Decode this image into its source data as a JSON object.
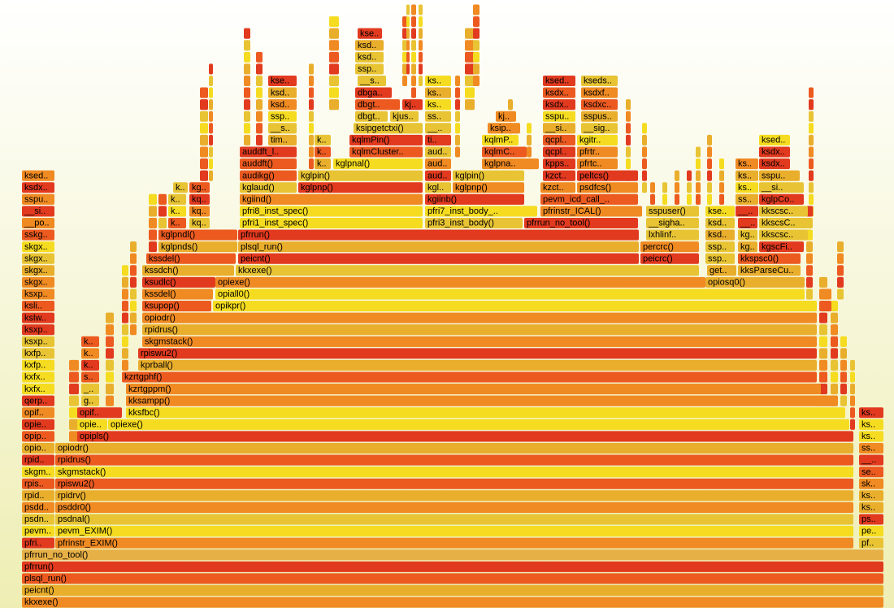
{
  "rows": [
    [
      "kkxexe()"
    ],
    [
      "peicnt()"
    ],
    [
      "plsql_run()"
    ],
    [
      "pfrrun()"
    ],
    [
      "pfrrun_no_tool()"
    ],
    [
      "pfri..",
      "pfrinstr_EXIM()",
      "pf.."
    ],
    [
      "pevm..",
      "pevm_EXIM()",
      "pe.."
    ],
    [
      "psdn..",
      "psdnal()",
      "ps.."
    ],
    [
      "psdd..",
      "psddr0()",
      "ks.."
    ],
    [
      "rpid..",
      "rpidrv()",
      "ks.."
    ],
    [
      "rpis..",
      "rpiswu2()",
      "sk.."
    ],
    [
      "skgm..",
      "skgmstack()",
      "se.."
    ],
    [
      "rpid..",
      "rpidrus()",
      "__.."
    ],
    [
      "opio..",
      "opiodr()",
      "ss.."
    ],
    [
      "opip..",
      "opipls()",
      "ks.."
    ],
    [
      "opie..",
      "opie..",
      "opiexe()",
      "ks.."
    ],
    [
      "opif..",
      "opif..",
      "kksfbc()",
      "ks.."
    ],
    [
      "qerp..",
      "g..",
      "kksampp()"
    ],
    [
      "kxfx..",
      "_..",
      "kzrtgppm()"
    ],
    [
      "kxfx..",
      "s..",
      "kzrtgphf()"
    ],
    [
      "kxfp..",
      "k..",
      "kprball()"
    ],
    [
      "kxfp..",
      "k..",
      "rpiswu2()"
    ],
    [
      "ksxp..",
      "k..",
      "skgmstack()"
    ],
    [
      "ksxp..",
      "rpidrus()"
    ],
    [
      "kslw..",
      "opiodr()"
    ],
    [
      "ksli..",
      "ksupop()",
      "opikpr()"
    ],
    [
      "ksxp..",
      "kssdel()",
      "opiall0()"
    ],
    [
      "skgx..",
      "ksudlc()",
      "opiexe()",
      "opiosq0()"
    ],
    [
      "skgx..",
      "kssdch()",
      "kkxexe()",
      "get..",
      "kksParseCu.."
    ],
    [
      "skgx..",
      "kssdel()",
      "peicnt()",
      "peicrc()",
      "ssp..",
      "kkspsc0()"
    ],
    [
      "skgx..",
      "kglpnds()",
      "plsql_run()",
      "percrc()",
      "ssp..",
      "kg..",
      "kgscFi.."
    ],
    [
      "sskg..",
      "kglpndl()",
      "pfrrun()",
      "lxhlinf..",
      "ksd..",
      "kg..",
      "kkscsc.."
    ],
    [
      "__po..",
      "k..",
      "kq..",
      "pfri1_inst_spec()",
      "pfri3_inst_body()",
      "pfrrun_no_tool()",
      "__sigha..",
      "ksd..",
      "__..",
      "kkscsC.."
    ],
    [
      "__si..",
      "k..",
      "kq..",
      "pfri8_inst_spec()",
      "pfri7_inst_body_..",
      "pfrinstr_ICAL()",
      "sspuser()",
      "kse..",
      "__..",
      "kkscsc.."
    ],
    [
      "sspu..",
      "k..",
      "kq..",
      "kgiind()",
      "kgiinb()",
      "pevm_icd_call_..",
      "ss..",
      "kglpCo.."
    ],
    [
      "ksdx..",
      "k..",
      "kg..",
      "kglaud()",
      "kglpnp()",
      "kgl..",
      "kglpnp()",
      "kzct..",
      "psdfcs()",
      "ks..",
      "__si.."
    ],
    [
      "ksed..",
      "audikg()",
      "kglpin()",
      "aud..",
      "kglpin()",
      "kzct..",
      "peltcs()",
      "ks..",
      "sspu.."
    ],
    [
      "auddft()",
      "k..",
      "kglpnal()",
      "aud..",
      "kglpna..",
      "kpps..",
      "pfrtc..",
      "ks..",
      "ksdx.."
    ],
    [
      "auddft_l..",
      "k..",
      "kqlmCluster..",
      "aud..",
      "kqlmC..",
      "qcpl..",
      "pfrtr..",
      "ksdx.."
    ],
    [
      "tim..",
      "k..",
      "kqlmPin()",
      "ti..",
      "kqlmP..",
      "qcpl..",
      "kgitr..",
      "ksed.."
    ],
    [
      "__s..",
      "ksipgetctxi()",
      "__..",
      "ksip..",
      "__si..",
      "__sig.."
    ],
    [
      "ssp..",
      "dbgt..",
      "kjus..",
      "ss..",
      "kj..",
      "sspu..",
      "sspus.."
    ],
    [
      "ksd..",
      "dbgt..",
      "kj..",
      "ks..",
      "ksdx..",
      "ksdxc.."
    ],
    [
      "ksd..",
      "dbga..",
      "ks..",
      "ksdx..",
      "ksdxf.."
    ],
    [
      "kse..",
      "__s..",
      "ks..",
      "ksed..",
      "kseds.."
    ],
    [
      "ssp.."
    ],
    [
      "ksd.."
    ],
    [
      "ksd.."
    ],
    [
      "kse.."
    ]
  ]
}
